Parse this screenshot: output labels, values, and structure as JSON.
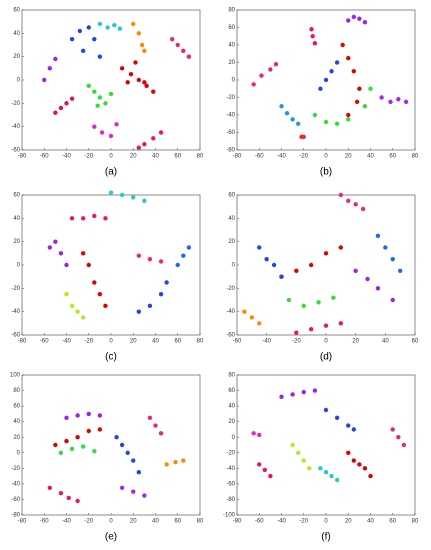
{
  "chart_data": [
    {
      "type": "scatter",
      "label": "(a)",
      "xlim": [
        -80,
        80
      ],
      "ylim": [
        -60,
        60
      ],
      "xticks": [
        -80,
        -60,
        -40,
        -20,
        0,
        20,
        40,
        60,
        80
      ],
      "yticks": [
        -60,
        -40,
        -20,
        0,
        20,
        40,
        60
      ],
      "series": [
        {
          "color": "#e00000",
          "x": [
            10,
            18,
            25,
            32,
            38,
            22,
            30,
            15
          ],
          "y": [
            10,
            5,
            0,
            -5,
            -10,
            15,
            -2,
            -2
          ]
        },
        {
          "color": "#33dd33",
          "x": [
            -20,
            -15,
            -10,
            -5,
            0,
            -12
          ],
          "y": [
            -5,
            -10,
            -15,
            -20,
            -12,
            -22
          ]
        },
        {
          "color": "#2244ee",
          "x": [
            -35,
            -28,
            -20,
            -15,
            -25,
            -10
          ],
          "y": [
            35,
            42,
            45,
            35,
            25,
            20
          ]
        },
        {
          "color": "#22cccc",
          "x": [
            -10,
            -3,
            3,
            8
          ],
          "y": [
            48,
            45,
            47,
            44
          ]
        },
        {
          "color": "#ff8800",
          "x": [
            20,
            25,
            28,
            30
          ],
          "y": [
            48,
            40,
            30,
            25
          ]
        },
        {
          "color": "#ee2277",
          "x": [
            55,
            60,
            65,
            70
          ],
          "y": [
            35,
            30,
            25,
            20
          ]
        },
        {
          "color": "#ee22cc",
          "x": [
            -15,
            -8,
            0,
            5
          ],
          "y": [
            -40,
            -45,
            -48,
            -38
          ]
        },
        {
          "color": "#dd1155",
          "x": [
            -50,
            -45,
            -40,
            -35
          ],
          "y": [
            -28,
            -24,
            -20,
            -16
          ]
        },
        {
          "color": "#9922ee",
          "x": [
            -60,
            -55,
            -50
          ],
          "y": [
            0,
            10,
            18
          ]
        },
        {
          "color": "#ee1166",
          "x": [
            25,
            30,
            38,
            45
          ],
          "y": [
            -58,
            -55,
            -50,
            -45
          ]
        }
      ]
    },
    {
      "type": "scatter",
      "label": "(b)",
      "xlim": [
        -80,
        80
      ],
      "ylim": [
        -80,
        80
      ],
      "xticks": [
        -80,
        -60,
        -40,
        -20,
        0,
        20,
        40,
        60,
        80
      ],
      "yticks": [
        -80,
        -60,
        -40,
        -20,
        0,
        20,
        40,
        60,
        80
      ],
      "series": [
        {
          "color": "#e00000",
          "x": [
            15,
            20,
            25,
            30,
            28,
            20
          ],
          "y": [
            40,
            25,
            10,
            -10,
            -25,
            -40
          ]
        },
        {
          "color": "#33dd33",
          "x": [
            -10,
            0,
            10,
            20,
            35,
            40
          ],
          "y": [
            -40,
            -48,
            -50,
            -45,
            -30,
            -10
          ]
        },
        {
          "color": "#2244ee",
          "x": [
            -5,
            0,
            5,
            10
          ],
          "y": [
            -10,
            0,
            10,
            20
          ]
        },
        {
          "color": "#ee2277",
          "x": [
            -65,
            -58,
            -50,
            -45
          ],
          "y": [
            -5,
            5,
            12,
            18
          ]
        },
        {
          "color": "#ee1166",
          "x": [
            -13,
            -12,
            -10
          ],
          "y": [
            58,
            50,
            42
          ]
        },
        {
          "color": "#9922ee",
          "x": [
            20,
            25,
            30,
            35
          ],
          "y": [
            68,
            72,
            70,
            66
          ]
        },
        {
          "color": "#aa22ee",
          "x": [
            50,
            58,
            65,
            72
          ],
          "y": [
            -20,
            -25,
            -22,
            -25
          ]
        },
        {
          "color": "#2299dd",
          "x": [
            -40,
            -35,
            -30,
            -25
          ],
          "y": [
            -30,
            -38,
            -45,
            -50
          ]
        },
        {
          "color": "#ff2222",
          "x": [
            -22,
            -20
          ],
          "y": [
            -65,
            -65
          ]
        }
      ]
    },
    {
      "type": "scatter",
      "label": "(c)",
      "xlim": [
        -80,
        80
      ],
      "ylim": [
        -60,
        60
      ],
      "xticks": [
        -80,
        -60,
        -40,
        -20,
        0,
        20,
        40,
        60,
        80
      ],
      "yticks": [
        -60,
        -40,
        -20,
        0,
        20,
        40,
        60
      ],
      "series": [
        {
          "color": "#e00000",
          "x": [
            -25,
            -20,
            -15,
            -10,
            -5
          ],
          "y": [
            10,
            0,
            -15,
            -25,
            -35
          ]
        },
        {
          "color": "#aaee22",
          "x": [
            -40,
            -35,
            -30,
            -25
          ],
          "y": [
            -25,
            -35,
            -40,
            -45
          ]
        },
        {
          "color": "#ee1166",
          "x": [
            -35,
            -25,
            -15,
            -5
          ],
          "y": [
            40,
            40,
            42,
            40
          ]
        },
        {
          "color": "#2244ee",
          "x": [
            25,
            35,
            45,
            50
          ],
          "y": [
            -40,
            -35,
            -25,
            -15
          ]
        },
        {
          "color": "#9922ee",
          "x": [
            -55,
            -50,
            -45,
            -40
          ],
          "y": [
            15,
            20,
            10,
            0
          ]
        },
        {
          "color": "#22cccc",
          "x": [
            0,
            10,
            20,
            30
          ],
          "y": [
            62,
            60,
            58,
            55
          ]
        },
        {
          "color": "#ee2277",
          "x": [
            25,
            35,
            45
          ],
          "y": [
            8,
            5,
            3
          ]
        },
        {
          "color": "#2266ee",
          "x": [
            60,
            65,
            70
          ],
          "y": [
            0,
            8,
            15
          ]
        }
      ]
    },
    {
      "type": "scatter",
      "label": "(d)",
      "xlim": [
        -60,
        60
      ],
      "ylim": [
        -60,
        60
      ],
      "xticks": [
        -60,
        -40,
        -20,
        0,
        20,
        40,
        60
      ],
      "yticks": [
        -60,
        -40,
        -20,
        0,
        20,
        40,
        60
      ],
      "series": [
        {
          "color": "#e00000",
          "x": [
            -30,
            -20,
            -10,
            0,
            10
          ],
          "y": [
            -10,
            -5,
            0,
            10,
            15
          ]
        },
        {
          "color": "#33dd33",
          "x": [
            -25,
            -15,
            -5,
            5
          ],
          "y": [
            -30,
            -35,
            -32,
            -28
          ]
        },
        {
          "color": "#2244ee",
          "x": [
            -45,
            -40,
            -35,
            -30
          ],
          "y": [
            15,
            5,
            0,
            -10
          ]
        },
        {
          "color": "#ee1166",
          "x": [
            -20,
            -10,
            0,
            10
          ],
          "y": [
            -58,
            -55,
            -52,
            -50
          ]
        },
        {
          "color": "#2266ee",
          "x": [
            35,
            40,
            45,
            50
          ],
          "y": [
            25,
            15,
            5,
            -5
          ]
        },
        {
          "color": "#9922ee",
          "x": [
            20,
            28,
            35,
            45
          ],
          "y": [
            -5,
            -12,
            -20,
            -30
          ]
        },
        {
          "color": "#ee2277",
          "x": [
            10,
            15,
            20,
            25
          ],
          "y": [
            60,
            55,
            52,
            48
          ]
        },
        {
          "color": "#ff8800",
          "x": [
            -55,
            -50,
            -45
          ],
          "y": [
            -40,
            -45,
            -50
          ]
        }
      ]
    },
    {
      "type": "scatter",
      "label": "(e)",
      "xlim": [
        -80,
        80
      ],
      "ylim": [
        -80,
        100
      ],
      "xticks": [
        -80,
        -60,
        -40,
        -20,
        0,
        20,
        40,
        60,
        80
      ],
      "yticks": [
        -80,
        -60,
        -40,
        -20,
        0,
        20,
        40,
        60,
        80,
        100
      ],
      "series": [
        {
          "color": "#e00000",
          "x": [
            -50,
            -40,
            -30,
            -20,
            -10
          ],
          "y": [
            10,
            15,
            20,
            28,
            30
          ]
        },
        {
          "color": "#33dd33",
          "x": [
            -45,
            -35,
            -25,
            -15
          ],
          "y": [
            0,
            5,
            8,
            2
          ]
        },
        {
          "color": "#2244ee",
          "x": [
            5,
            10,
            15,
            20,
            25
          ],
          "y": [
            20,
            10,
            0,
            -10,
            -25
          ]
        },
        {
          "color": "#ee1166",
          "x": [
            -55,
            -45,
            -38,
            -30
          ],
          "y": [
            -45,
            -52,
            -58,
            -62
          ]
        },
        {
          "color": "#9922ee",
          "x": [
            -40,
            -30,
            -20,
            -10
          ],
          "y": [
            45,
            48,
            50,
            48
          ]
        },
        {
          "color": "#ee2277",
          "x": [
            35,
            40,
            45
          ],
          "y": [
            45,
            35,
            25
          ]
        },
        {
          "color": "#ff8800",
          "x": [
            50,
            58,
            65
          ],
          "y": [
            -15,
            -12,
            -10
          ]
        },
        {
          "color": "#aa22ee",
          "x": [
            10,
            20,
            30
          ],
          "y": [
            -45,
            -50,
            -55
          ]
        }
      ]
    },
    {
      "type": "scatter",
      "label": "(f)",
      "xlim": [
        -80,
        80
      ],
      "ylim": [
        -100,
        80
      ],
      "xticks": [
        -80,
        -60,
        -40,
        -20,
        0,
        20,
        40,
        60,
        80
      ],
      "yticks": [
        -100,
        -80,
        -60,
        -40,
        -20,
        0,
        20,
        40,
        60,
        80
      ],
      "series": [
        {
          "color": "#e00000",
          "x": [
            20,
            25,
            30,
            35,
            40
          ],
          "y": [
            -20,
            -30,
            -35,
            -40,
            -50
          ]
        },
        {
          "color": "#aaee22",
          "x": [
            -30,
            -25,
            -20,
            -15
          ],
          "y": [
            -10,
            -20,
            -30,
            -40
          ]
        },
        {
          "color": "#2244ee",
          "x": [
            0,
            10,
            20,
            25
          ],
          "y": [
            35,
            25,
            15,
            10
          ]
        },
        {
          "color": "#9922ee",
          "x": [
            -40,
            -30,
            -20,
            -10
          ],
          "y": [
            52,
            55,
            58,
            60
          ]
        },
        {
          "color": "#ee1166",
          "x": [
            -60,
            -55,
            -50
          ],
          "y": [
            -35,
            -42,
            -50
          ]
        },
        {
          "color": "#ee2277",
          "x": [
            60,
            65,
            70
          ],
          "y": [
            10,
            0,
            -10
          ]
        },
        {
          "color": "#22cccc",
          "x": [
            -5,
            0,
            5,
            10
          ],
          "y": [
            -40,
            -45,
            -50,
            -55
          ]
        },
        {
          "color": "#ee22cc",
          "x": [
            -65,
            -60
          ],
          "y": [
            5,
            3
          ]
        }
      ]
    }
  ]
}
